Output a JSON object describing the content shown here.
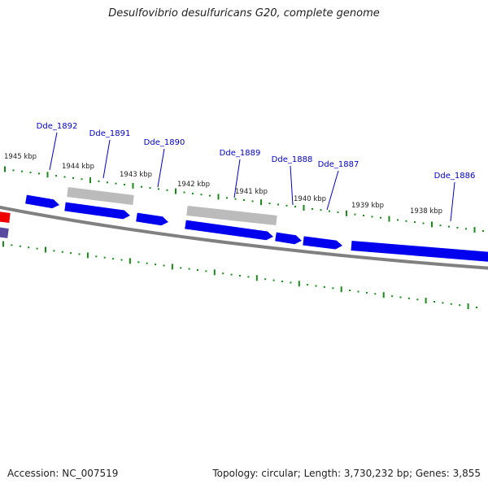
{
  "header": {
    "title": "Desulfovibrio desulfuricans G20, complete genome"
  },
  "footer": {
    "accession": "Accession: NC_007519",
    "summary": "Topology: circular; Length: 3,730,232 bp; Genes: 3,855"
  },
  "colors": {
    "forward_gene": "#0000ee",
    "pseudo_gene": "#bbbbbb",
    "backbone": "#808080",
    "tick": "#1a8a1a",
    "gene_label": "#0000cc",
    "red_feature": "#ee0000",
    "purple_feature": "#5a4aa0"
  },
  "scale_labels": [
    "1945 kbp",
    "1944 kbp",
    "1943 kbp",
    "1942 kbp",
    "1941 kbp",
    "1940 kbp",
    "1939 kbp",
    "1938 kbp"
  ],
  "gene_labels": [
    "Dde_1892",
    "Dde_1891",
    "Dde_1890",
    "Dde_1889",
    "Dde_1888",
    "Dde_1887",
    "Dde_1886"
  ]
}
